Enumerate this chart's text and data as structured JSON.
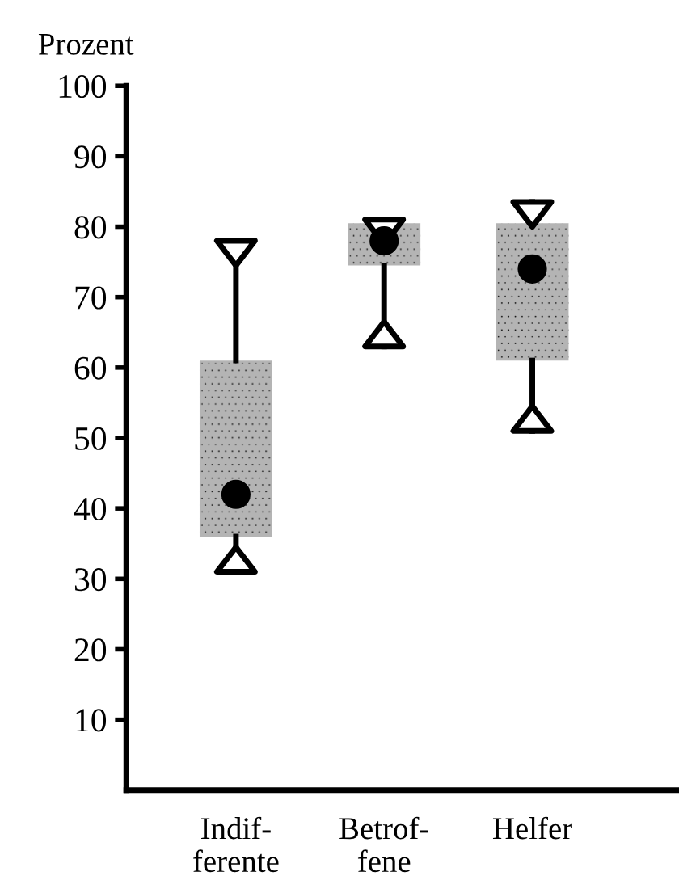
{
  "chart_data": {
    "type": "box",
    "ylabel": "Prozent",
    "categories": [
      "Indif-\nferente",
      "Betrof-\nfene",
      "Helfer"
    ],
    "boxes": [
      {
        "low": 31,
        "q1": 36,
        "median": 42,
        "q3": 61,
        "high": 78
      },
      {
        "low": 63,
        "q1": 74.5,
        "median": 78,
        "q3": 80.5,
        "high": 81
      },
      {
        "low": 51,
        "q1": 61,
        "median": 74,
        "q3": 80.5,
        "high": 83.5
      }
    ],
    "color": "#b4b4b4",
    "ylim": [
      0,
      100
    ],
    "yticks": [
      10,
      20,
      30,
      40,
      50,
      60,
      70,
      80,
      90,
      100
    ]
  }
}
